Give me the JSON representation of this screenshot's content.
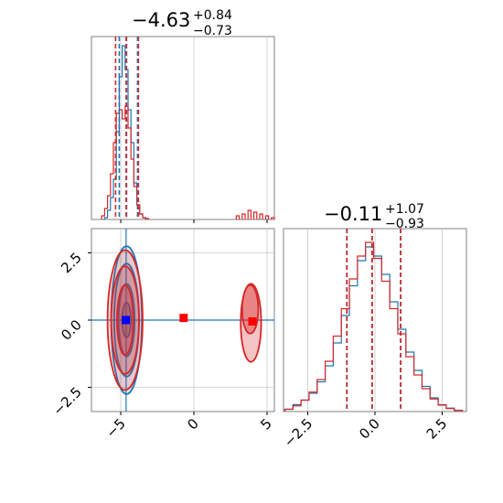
{
  "chart_data": {
    "type": "corner",
    "colors": {
      "blue": "#1f77b4",
      "red": "#d62728",
      "grid": "#c8c8c8",
      "axis": "#808080"
    },
    "titles": [
      {
        "main": "−4.63",
        "sup": "+0.84",
        "sub": "−0.73"
      },
      {
        "main": "−0.11",
        "sup": "+1.07",
        "sub": "−0.93"
      }
    ],
    "axes": {
      "x1": {
        "range": [
          -7.0,
          5.5
        ],
        "ticks": [
          -5,
          0,
          5
        ],
        "tick_labels": [
          "−5",
          "0",
          "5"
        ]
      },
      "x2": {
        "range": [
          -3.4,
          3.4
        ],
        "ticks": [
          -2.5,
          0.0,
          2.5
        ],
        "tick_labels": [
          "−2.5",
          "0.0",
          "2.5"
        ]
      },
      "y2": {
        "range": [
          -3.4,
          3.4
        ],
        "ticks": [
          2.5,
          0.0,
          -2.5
        ],
        "tick_labels": [
          "2.5",
          "0.0",
          "−2.5"
        ]
      }
    },
    "hist1": {
      "blue": {
        "x": [
          -6.0,
          -5.8,
          -5.6,
          -5.4,
          -5.2,
          -5.0,
          -4.8,
          -4.6,
          -4.4,
          -4.2,
          -4.0,
          -3.8,
          -3.6,
          -3.4
        ],
        "y": [
          0.01,
          0.05,
          0.12,
          0.22,
          0.48,
          0.78,
          0.95,
          0.82,
          0.6,
          0.42,
          0.2,
          0.08,
          0.03,
          0.01
        ]
      },
      "red": {
        "x": [
          -6.2,
          -6.0,
          -5.8,
          -5.6,
          -5.4,
          -5.2,
          -5.0,
          -4.8,
          -4.6,
          -4.4,
          -4.2,
          -4.0,
          -3.8,
          -3.6,
          -3.4,
          -3.2,
          3.0,
          3.4,
          3.8,
          4.2,
          4.6,
          5.0,
          5.4
        ],
        "y": [
          0.02,
          0.06,
          0.13,
          0.25,
          0.42,
          0.58,
          0.6,
          0.55,
          0.62,
          0.5,
          0.33,
          0.18,
          0.08,
          0.03,
          0.01,
          0.005,
          0.02,
          0.03,
          0.05,
          0.04,
          0.03,
          0.02,
          0.01
        ]
      },
      "quantiles_blue": [
        -5.1,
        -4.6,
        -3.85
      ],
      "quantiles_red": [
        -5.35,
        -4.63,
        -3.79
      ]
    },
    "hist2": {
      "blue": {
        "x": [
          -3.2,
          -2.9,
          -2.6,
          -2.3,
          -2.0,
          -1.7,
          -1.4,
          -1.1,
          -0.8,
          -0.5,
          -0.2,
          0.1,
          0.4,
          0.7,
          1.0,
          1.3,
          1.6,
          1.9,
          2.2,
          2.5,
          2.8,
          3.1
        ],
        "y": [
          0.01,
          0.03,
          0.05,
          0.08,
          0.13,
          0.2,
          0.3,
          0.42,
          0.55,
          0.66,
          0.72,
          0.68,
          0.6,
          0.48,
          0.36,
          0.26,
          0.18,
          0.11,
          0.06,
          0.03,
          0.015,
          0.005
        ]
      },
      "red": {
        "x": [
          -3.2,
          -2.9,
          -2.6,
          -2.3,
          -2.0,
          -1.7,
          -1.4,
          -1.1,
          -0.8,
          -0.5,
          -0.2,
          0.1,
          0.4,
          0.7,
          1.0,
          1.3,
          1.6,
          1.9,
          2.2,
          2.5,
          2.8,
          3.1
        ],
        "y": [
          0.01,
          0.025,
          0.05,
          0.085,
          0.14,
          0.22,
          0.33,
          0.45,
          0.58,
          0.68,
          0.74,
          0.67,
          0.57,
          0.45,
          0.34,
          0.24,
          0.16,
          0.1,
          0.055,
          0.028,
          0.013,
          0.005
        ]
      },
      "quantiles_blue": [
        -1.05,
        -0.1,
        0.95
      ],
      "quantiles_red": [
        -1.04,
        -0.11,
        0.96
      ]
    },
    "joint": {
      "blue_contours": [
        {
          "cx": -4.6,
          "cy": 0.0,
          "rx": 1.05,
          "ry": 2.75
        },
        {
          "cx": -4.6,
          "cy": 0.0,
          "rx": 0.85,
          "ry": 2.1
        },
        {
          "cx": -4.6,
          "cy": 0.0,
          "rx": 0.55,
          "ry": 1.35
        },
        {
          "cx": -4.6,
          "cy": 0.0,
          "rx": 0.3,
          "ry": 0.65
        }
      ],
      "red_contours": [
        {
          "cx": -4.7,
          "cy": 0.0,
          "rx": 1.2,
          "ry": 2.6
        },
        {
          "cx": -4.7,
          "cy": 0.0,
          "rx": 0.95,
          "ry": 2.0
        },
        {
          "cx": -4.7,
          "cy": 0.0,
          "rx": 0.55,
          "ry": 1.3
        },
        {
          "cx": 3.85,
          "cy": 0.4,
          "rx": 0.55,
          "ry": 0.9
        },
        {
          "cx": 3.9,
          "cy": -0.1,
          "rx": 0.7,
          "ry": 1.45
        }
      ],
      "markers": [
        {
          "x": -4.65,
          "y": 0.0,
          "color": "#0000ff"
        },
        {
          "x": -0.7,
          "y": 0.08,
          "color": "#ff0000"
        },
        {
          "x": 4.0,
          "y": -0.05,
          "color": "#ff0000"
        }
      ],
      "crosshair": {
        "x": -4.63,
        "y": 0.0
      }
    },
    "grid": true
  }
}
